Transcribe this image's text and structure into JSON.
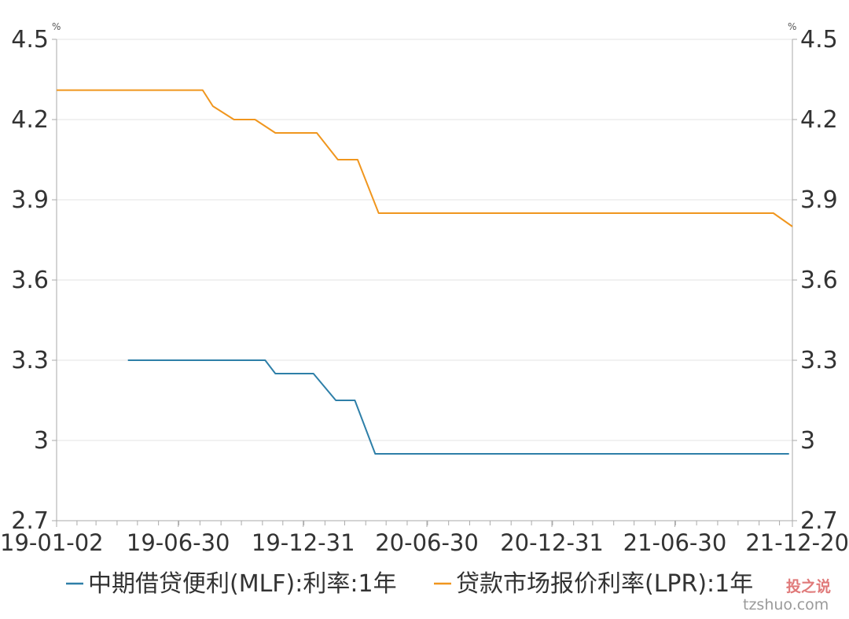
{
  "chart_data": {
    "type": "line",
    "x_type": "date",
    "x_ticks": [
      "19-01-02",
      "19-06-30",
      "19-12-31",
      "20-06-30",
      "20-12-31",
      "21-06-30",
      "21-12-20"
    ],
    "xlim": [
      "2019-01-02",
      "2021-12-20"
    ],
    "ylim": [
      2.7,
      4.5
    ],
    "y_ticks": [
      "4.5",
      "4.2",
      "3.9",
      "3.6",
      "3.3",
      "3",
      "2.7"
    ],
    "y_unit_left": "%",
    "y_unit_right": "%",
    "grid": true,
    "legend_position": "bottom",
    "series": [
      {
        "name": "中期借贷便利(MLF):利率:1年",
        "color": "#2e7fa8",
        "points": [
          {
            "x": "2019-04-17",
            "y": 3.3
          },
          {
            "x": "2019-11-05",
            "y": 3.3
          },
          {
            "x": "2019-11-20",
            "y": 3.25
          },
          {
            "x": "2020-01-15",
            "y": 3.25
          },
          {
            "x": "2020-02-17",
            "y": 3.15
          },
          {
            "x": "2020-03-16",
            "y": 3.15
          },
          {
            "x": "2020-04-15",
            "y": 2.95
          },
          {
            "x": "2021-12-15",
            "y": 2.95
          }
        ]
      },
      {
        "name": "贷款市场报价利率(LPR):1年",
        "color": "#f0961e",
        "points": [
          {
            "x": "2019-01-02",
            "y": 4.31
          },
          {
            "x": "2019-08-05",
            "y": 4.31
          },
          {
            "x": "2019-08-20",
            "y": 4.25
          },
          {
            "x": "2019-09-20",
            "y": 4.2
          },
          {
            "x": "2019-10-21",
            "y": 4.2
          },
          {
            "x": "2019-11-20",
            "y": 4.15
          },
          {
            "x": "2020-01-20",
            "y": 4.15
          },
          {
            "x": "2020-02-20",
            "y": 4.05
          },
          {
            "x": "2020-03-20",
            "y": 4.05
          },
          {
            "x": "2020-04-20",
            "y": 3.85
          },
          {
            "x": "2021-11-22",
            "y": 3.85
          },
          {
            "x": "2021-12-20",
            "y": 3.8
          }
        ]
      }
    ]
  },
  "watermark": {
    "brand": "投之说",
    "domain": "tzshuo.com"
  }
}
